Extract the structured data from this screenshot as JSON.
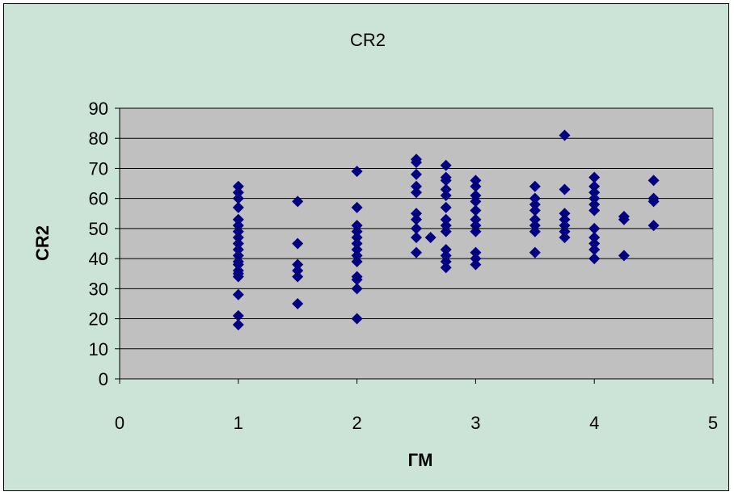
{
  "chart_data": {
    "type": "scatter",
    "title": "CR2",
    "xlabel": "ГМ",
    "ylabel": "CR2",
    "xlim": [
      0,
      5
    ],
    "ylim": [
      0,
      90
    ],
    "x_ticks": [
      "0",
      "1",
      "2",
      "3",
      "4",
      "5"
    ],
    "y_ticks": [
      "0",
      "10",
      "20",
      "30",
      "40",
      "50",
      "60",
      "70",
      "80",
      "90"
    ],
    "grid": "horizontal",
    "legend": "none",
    "colors": {
      "background": "#cce3d8",
      "plot_area": "#c0c0c0",
      "marker": "#000080",
      "grid": "#000000"
    },
    "series": [
      {
        "marker": "diamond",
        "points": [
          [
            1,
            64
          ],
          [
            1,
            62
          ],
          [
            1,
            60
          ],
          [
            1,
            57
          ],
          [
            1,
            53
          ],
          [
            1,
            51
          ],
          [
            1,
            49
          ],
          [
            1,
            47
          ],
          [
            1,
            45
          ],
          [
            1,
            43
          ],
          [
            1,
            41
          ],
          [
            1,
            39
          ],
          [
            1,
            38
          ],
          [
            1,
            36
          ],
          [
            1,
            35
          ],
          [
            1,
            34
          ],
          [
            1,
            28
          ],
          [
            1,
            21
          ],
          [
            1,
            18
          ],
          [
            1.5,
            59
          ],
          [
            1.5,
            45
          ],
          [
            1.5,
            38
          ],
          [
            1.5,
            36
          ],
          [
            1.5,
            34
          ],
          [
            1.5,
            25
          ],
          [
            2,
            69
          ],
          [
            2,
            57
          ],
          [
            2,
            51
          ],
          [
            2,
            49
          ],
          [
            2,
            47
          ],
          [
            2,
            45
          ],
          [
            2,
            43
          ],
          [
            2,
            41
          ],
          [
            2,
            39
          ],
          [
            2,
            34
          ],
          [
            2,
            33
          ],
          [
            2,
            30
          ],
          [
            2,
            20
          ],
          [
            2.5,
            73
          ],
          [
            2.5,
            72
          ],
          [
            2.5,
            68
          ],
          [
            2.5,
            64
          ],
          [
            2.5,
            62
          ],
          [
            2.5,
            55
          ],
          [
            2.5,
            53
          ],
          [
            2.5,
            50
          ],
          [
            2.5,
            47
          ],
          [
            2.5,
            42
          ],
          [
            2.62,
            47
          ],
          [
            2.75,
            71
          ],
          [
            2.75,
            67
          ],
          [
            2.75,
            66
          ],
          [
            2.75,
            63
          ],
          [
            2.75,
            61
          ],
          [
            2.75,
            57
          ],
          [
            2.75,
            53
          ],
          [
            2.75,
            51
          ],
          [
            2.75,
            49
          ],
          [
            2.75,
            43
          ],
          [
            2.75,
            41
          ],
          [
            2.75,
            39
          ],
          [
            2.75,
            37
          ],
          [
            3,
            66
          ],
          [
            3,
            64
          ],
          [
            3,
            61
          ],
          [
            3,
            59
          ],
          [
            3,
            56
          ],
          [
            3,
            53
          ],
          [
            3,
            51
          ],
          [
            3,
            49
          ],
          [
            3,
            42
          ],
          [
            3,
            40
          ],
          [
            3,
            38
          ],
          [
            3.5,
            64
          ],
          [
            3.5,
            60
          ],
          [
            3.5,
            58
          ],
          [
            3.5,
            56
          ],
          [
            3.5,
            53
          ],
          [
            3.5,
            51
          ],
          [
            3.5,
            49
          ],
          [
            3.5,
            42
          ],
          [
            3.75,
            81
          ],
          [
            3.75,
            63
          ],
          [
            3.75,
            55
          ],
          [
            3.75,
            53
          ],
          [
            3.75,
            51
          ],
          [
            3.75,
            49
          ],
          [
            3.75,
            47
          ],
          [
            4,
            67
          ],
          [
            4,
            64
          ],
          [
            4,
            62
          ],
          [
            4,
            60
          ],
          [
            4,
            58
          ],
          [
            4,
            56
          ],
          [
            4,
            50
          ],
          [
            4,
            47
          ],
          [
            4,
            45
          ],
          [
            4,
            43
          ],
          [
            4,
            40
          ],
          [
            4.25,
            54
          ],
          [
            4.25,
            53
          ],
          [
            4.25,
            41
          ],
          [
            4.5,
            66
          ],
          [
            4.5,
            60
          ],
          [
            4.5,
            59
          ],
          [
            4.5,
            51
          ]
        ]
      }
    ]
  }
}
